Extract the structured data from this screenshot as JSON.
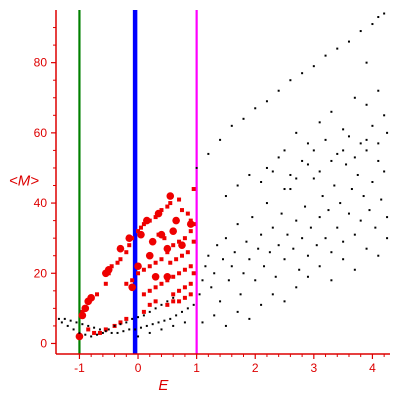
{
  "chart_data": {
    "type": "scatter",
    "title": "",
    "xlabel": "E",
    "ylabel": "<M>",
    "xlim": [
      -1.4,
      4.3
    ],
    "ylim": [
      -3,
      95
    ],
    "x_ticks": [
      -1,
      0,
      1,
      2,
      3,
      4
    ],
    "y_ticks": [
      0,
      20,
      40,
      60,
      80
    ],
    "grid": false,
    "axis_color": "#dd0000",
    "vertical_lines": [
      {
        "x": -1.0,
        "color": "#008000",
        "width": "medium"
      },
      {
        "x": -0.05,
        "color": "#0000ff",
        "width": "thick"
      },
      {
        "x": 1.0,
        "color": "#ff00ff",
        "width": "medium"
      }
    ],
    "series": [
      {
        "color": "#ee0000",
        "marker": "square",
        "points": [
          [
            -0.95,
            9
          ],
          [
            -0.9,
            10
          ],
          [
            -0.85,
            12
          ],
          [
            -0.8,
            13
          ],
          [
            -0.7,
            14
          ],
          [
            -0.55,
            17
          ],
          [
            -0.5,
            20
          ],
          [
            -0.45,
            22
          ],
          [
            -0.35,
            23
          ],
          [
            -0.3,
            24
          ],
          [
            -0.2,
            26
          ],
          [
            -0.15,
            28
          ],
          [
            -0.1,
            30
          ],
          [
            0.0,
            32
          ],
          [
            0.05,
            33
          ],
          [
            0.1,
            34
          ],
          [
            0.2,
            35
          ],
          [
            0.3,
            36
          ],
          [
            0.4,
            38
          ],
          [
            0.5,
            39
          ],
          [
            0.55,
            40
          ],
          [
            0.7,
            41
          ],
          [
            0.75,
            38
          ],
          [
            0.85,
            37
          ],
          [
            0.95,
            44
          ],
          [
            0.9,
            35
          ],
          [
            -0.2,
            17
          ],
          [
            -0.1,
            18
          ],
          [
            0.0,
            20
          ],
          [
            0.1,
            21
          ],
          [
            0.2,
            22
          ],
          [
            0.3,
            23
          ],
          [
            0.4,
            24
          ],
          [
            0.5,
            26
          ],
          [
            0.6,
            28
          ],
          [
            0.7,
            29
          ],
          [
            0.8,
            30
          ],
          [
            0.9,
            32
          ],
          [
            0.95,
            34
          ],
          [
            0.1,
            14
          ],
          [
            0.2,
            15
          ],
          [
            0.3,
            16
          ],
          [
            0.4,
            17
          ],
          [
            0.5,
            18
          ],
          [
            0.6,
            19
          ],
          [
            0.7,
            20
          ],
          [
            0.8,
            21
          ],
          [
            0.9,
            22
          ],
          [
            0.6,
            14
          ],
          [
            0.7,
            15
          ],
          [
            0.8,
            16
          ],
          [
            0.9,
            17
          ],
          [
            0.5,
            11
          ],
          [
            0.6,
            12
          ],
          [
            0.7,
            12
          ],
          [
            0.8,
            13
          ],
          [
            0.9,
            14
          ],
          [
            -0.4,
            5
          ],
          [
            -0.3,
            6
          ],
          [
            -0.2,
            7
          ],
          [
            0.1,
            9
          ],
          [
            0.2,
            11
          ],
          [
            0.3,
            12
          ],
          [
            0.55,
            23
          ],
          [
            0.65,
            24
          ],
          [
            0.75,
            25
          ],
          [
            0.85,
            26
          ],
          [
            0.35,
            31
          ],
          [
            0.45,
            30
          ],
          [
            -0.85,
            4
          ],
          [
            -0.75,
            3
          ],
          [
            -0.65,
            3
          ],
          [
            -0.55,
            4
          ],
          [
            0.95,
            29
          ],
          [
            0.95,
            20
          ]
        ],
        "big_points": [
          [
            -1.0,
            2
          ],
          [
            -0.95,
            8
          ],
          [
            -0.9,
            10
          ],
          [
            -0.85,
            12
          ],
          [
            -0.8,
            13
          ],
          [
            -0.55,
            20
          ],
          [
            -0.5,
            21
          ],
          [
            -0.3,
            27
          ],
          [
            -0.15,
            30
          ],
          [
            0.0,
            22
          ],
          [
            0.05,
            31
          ],
          [
            0.15,
            35
          ],
          [
            0.25,
            29
          ],
          [
            0.35,
            37
          ],
          [
            0.4,
            31
          ],
          [
            0.5,
            27
          ],
          [
            0.55,
            42
          ],
          [
            0.6,
            32
          ],
          [
            0.65,
            35
          ],
          [
            0.75,
            28
          ],
          [
            0.9,
            34
          ],
          [
            0.2,
            25
          ],
          [
            0.3,
            19
          ],
          [
            -0.1,
            16
          ],
          [
            0.5,
            19
          ]
        ]
      },
      {
        "color": "#000000",
        "marker": "dot",
        "points": [
          [
            -1.35,
            7
          ],
          [
            -1.25,
            7
          ],
          [
            -1.15,
            6.5
          ],
          [
            -1.05,
            6
          ],
          [
            -0.95,
            5.5
          ],
          [
            -0.85,
            5
          ],
          [
            -0.75,
            4.5
          ],
          [
            -0.65,
            4
          ],
          [
            -0.55,
            3.5
          ],
          [
            -0.45,
            3
          ],
          [
            -0.35,
            3
          ],
          [
            -0.25,
            3.5
          ],
          [
            -0.15,
            4
          ],
          [
            -0.05,
            4
          ],
          [
            0.05,
            4.5
          ],
          [
            0.15,
            5
          ],
          [
            0.25,
            5.5
          ],
          [
            0.35,
            6
          ],
          [
            0.45,
            6.5
          ],
          [
            0.55,
            7
          ],
          [
            0.65,
            8
          ],
          [
            0.75,
            9
          ],
          [
            0.85,
            10
          ],
          [
            0.95,
            11
          ],
          [
            -1.3,
            6
          ],
          [
            -1.2,
            5
          ],
          [
            -1.1,
            4
          ],
          [
            -1.0,
            3
          ],
          [
            -0.9,
            2.5
          ],
          [
            -0.8,
            2
          ],
          [
            -0.7,
            2.5
          ],
          [
            -0.6,
            3
          ],
          [
            -0.5,
            4
          ],
          [
            -0.4,
            5
          ],
          [
            -0.3,
            5.5
          ],
          [
            -0.2,
            6
          ],
          [
            -0.1,
            7
          ],
          [
            0.0,
            7.5
          ],
          [
            0.1,
            8
          ],
          [
            0.2,
            9
          ],
          [
            0.3,
            10
          ],
          [
            0.4,
            11
          ],
          [
            0.5,
            12
          ],
          [
            0.6,
            13
          ],
          [
            0.0,
            2
          ],
          [
            0.2,
            3
          ],
          [
            0.4,
            4
          ],
          [
            0.6,
            5
          ],
          [
            0.8,
            6
          ],
          [
            1.05,
            14
          ],
          [
            1.1,
            18
          ],
          [
            1.15,
            22
          ],
          [
            1.2,
            25
          ],
          [
            1.25,
            16
          ],
          [
            1.3,
            20
          ],
          [
            1.35,
            28
          ],
          [
            1.4,
            12
          ],
          [
            1.45,
            24
          ],
          [
            1.5,
            30
          ],
          [
            1.55,
            18
          ],
          [
            1.6,
            22
          ],
          [
            1.65,
            26
          ],
          [
            1.7,
            34
          ],
          [
            1.75,
            14
          ],
          [
            1.8,
            20
          ],
          [
            1.85,
            29
          ],
          [
            1.9,
            24
          ],
          [
            1.95,
            36
          ],
          [
            2.0,
            18
          ],
          [
            2.05,
            27
          ],
          [
            2.1,
            31
          ],
          [
            2.15,
            22
          ],
          [
            2.2,
            40
          ],
          [
            2.25,
            26
          ],
          [
            2.3,
            33
          ],
          [
            2.35,
            19
          ],
          [
            2.4,
            28
          ],
          [
            2.45,
            37
          ],
          [
            2.5,
            24
          ],
          [
            2.55,
            31
          ],
          [
            2.6,
            44
          ],
          [
            2.65,
            27
          ],
          [
            2.7,
            35
          ],
          [
            2.75,
            21
          ],
          [
            2.8,
            30
          ],
          [
            2.85,
            39
          ],
          [
            2.9,
            25
          ],
          [
            2.95,
            33
          ],
          [
            3.0,
            47
          ],
          [
            3.05,
            28
          ],
          [
            3.1,
            36
          ],
          [
            3.15,
            42
          ],
          [
            3.2,
            30
          ],
          [
            3.25,
            38
          ],
          [
            3.3,
            26
          ],
          [
            3.35,
            45
          ],
          [
            3.4,
            33
          ],
          [
            3.45,
            40
          ],
          [
            3.5,
            29
          ],
          [
            3.55,
            51
          ],
          [
            3.6,
            37
          ],
          [
            3.65,
            44
          ],
          [
            3.7,
            31
          ],
          [
            3.75,
            48
          ],
          [
            3.8,
            35
          ],
          [
            3.85,
            42
          ],
          [
            3.9,
            55
          ],
          [
            3.95,
            38
          ],
          [
            4.0,
            46
          ],
          [
            4.05,
            33
          ],
          [
            4.1,
            52
          ],
          [
            4.15,
            41
          ],
          [
            4.2,
            49
          ],
          [
            4.25,
            36
          ],
          [
            1.1,
            6
          ],
          [
            1.3,
            8
          ],
          [
            1.5,
            5
          ],
          [
            1.7,
            9
          ],
          [
            1.9,
            7
          ],
          [
            2.1,
            11
          ],
          [
            2.3,
            14
          ],
          [
            2.5,
            12
          ],
          [
            2.7,
            16
          ],
          [
            2.9,
            19
          ],
          [
            3.1,
            22
          ],
          [
            3.3,
            18
          ],
          [
            3.5,
            24
          ],
          [
            3.7,
            21
          ],
          [
            3.9,
            27
          ],
          [
            4.1,
            25
          ],
          [
            4.25,
            30
          ],
          [
            1.0,
            50
          ],
          [
            1.2,
            54
          ],
          [
            1.4,
            58
          ],
          [
            1.6,
            62
          ],
          [
            1.8,
            64
          ],
          [
            2.0,
            67
          ],
          [
            2.2,
            69
          ],
          [
            2.4,
            72
          ],
          [
            2.6,
            75
          ],
          [
            2.8,
            77
          ],
          [
            3.0,
            79
          ],
          [
            3.2,
            82
          ],
          [
            3.4,
            84
          ],
          [
            3.6,
            86
          ],
          [
            3.8,
            89
          ],
          [
            4.0,
            91
          ],
          [
            4.2,
            94
          ],
          [
            4.1,
            93
          ],
          [
            3.9,
            80
          ],
          [
            2.5,
            55
          ],
          [
            2.7,
            60
          ],
          [
            2.9,
            57
          ],
          [
            3.1,
            63
          ],
          [
            3.3,
            66
          ],
          [
            3.5,
            61
          ],
          [
            3.7,
            70
          ],
          [
            3.9,
            68
          ],
          [
            4.1,
            72
          ],
          [
            4.2,
            65
          ],
          [
            2.2,
            50
          ],
          [
            2.4,
            53
          ],
          [
            2.6,
            48
          ],
          [
            2.8,
            52
          ],
          [
            3.0,
            55
          ],
          [
            3.2,
            58
          ],
          [
            3.4,
            54
          ],
          [
            3.6,
            59
          ],
          [
            3.8,
            57
          ],
          [
            4.0,
            62
          ],
          [
            1.5,
            42
          ],
          [
            1.7,
            45
          ],
          [
            1.9,
            48
          ],
          [
            2.1,
            46
          ],
          [
            2.3,
            49
          ],
          [
            2.5,
            44
          ],
          [
            2.7,
            47
          ],
          [
            2.9,
            51
          ],
          [
            3.1,
            49
          ],
          [
            3.3,
            52
          ],
          [
            3.5,
            55
          ],
          [
            3.7,
            53
          ],
          [
            3.9,
            58
          ],
          [
            4.1,
            57
          ],
          [
            4.25,
            60
          ]
        ]
      }
    ]
  }
}
